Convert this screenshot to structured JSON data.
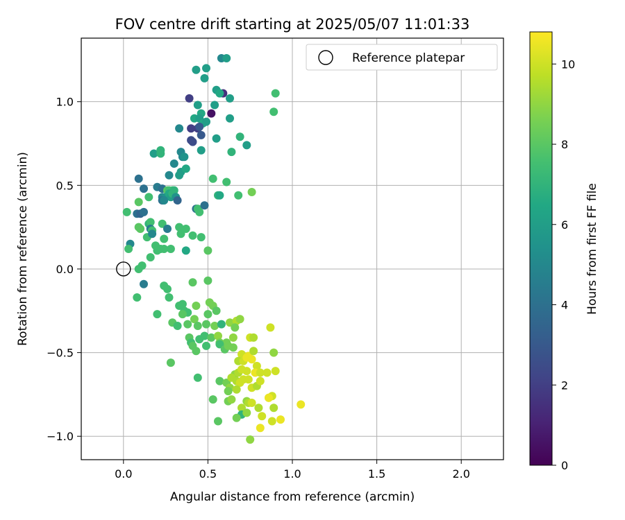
{
  "chart_data": {
    "type": "scatter",
    "title": "FOV centre drift starting at 2025/05/07 11:01:33",
    "xlabel": "Angular distance from reference (arcmin)",
    "ylabel": "Rotation from reference (arcmin)",
    "xlim": [
      -0.25,
      2.25
    ],
    "ylim": [
      -1.14,
      1.38
    ],
    "x_ticks": [
      0.0,
      0.5,
      1.0,
      1.5,
      2.0
    ],
    "x_tick_labels": [
      "0.0",
      "0.5",
      "1.0",
      "1.5",
      "2.0"
    ],
    "y_ticks": [
      -1.0,
      -0.5,
      0.0,
      0.5,
      1.0
    ],
    "y_tick_labels": [
      "−1.0",
      "−0.5",
      "0.0",
      "0.5",
      "1.0"
    ],
    "grid": true,
    "legend": {
      "placement": "top-right",
      "entries": [
        "Reference platepar"
      ]
    },
    "colormap": "viridis",
    "colorbar": {
      "label": "Hours from first FF file",
      "range": [
        0,
        10.8
      ],
      "ticks": [
        0,
        2,
        4,
        6,
        8,
        10
      ],
      "tick_labels": [
        "0",
        "2",
        "4",
        "6",
        "8",
        "10"
      ]
    },
    "reference_point": {
      "x": 0.0,
      "y": 0.0
    },
    "points": [
      [
        0.58,
        1.26,
        5.0
      ],
      [
        0.61,
        1.26,
        6.0
      ],
      [
        0.43,
        1.19,
        6.0
      ],
      [
        0.49,
        1.2,
        6.0
      ],
      [
        0.48,
        1.14,
        6.0
      ],
      [
        0.55,
        1.07,
        6.0
      ],
      [
        0.39,
        1.02,
        2.0
      ],
      [
        0.59,
        1.05,
        1.5
      ],
      [
        0.57,
        1.05,
        6.5
      ],
      [
        0.63,
        1.02,
        6.0
      ],
      [
        0.9,
        1.05,
        7.5
      ],
      [
        0.89,
        0.94,
        7.5
      ],
      [
        0.44,
        0.98,
        6.0
      ],
      [
        0.46,
        0.93,
        6.5
      ],
      [
        0.52,
        0.93,
        0.5
      ],
      [
        0.54,
        0.98,
        6.0
      ],
      [
        0.42,
        0.9,
        6.5
      ],
      [
        0.45,
        0.9,
        6.0
      ],
      [
        0.47,
        0.87,
        6.5
      ],
      [
        0.49,
        0.88,
        6.0
      ],
      [
        0.63,
        0.9,
        6.0
      ],
      [
        0.44,
        0.84,
        2.0
      ],
      [
        0.45,
        0.85,
        3.0
      ],
      [
        0.33,
        0.84,
        5.0
      ],
      [
        0.4,
        0.84,
        2.0
      ],
      [
        0.46,
        0.8,
        3.0
      ],
      [
        0.55,
        0.78,
        6.0
      ],
      [
        0.41,
        0.76,
        2.5
      ],
      [
        0.4,
        0.77,
        2.5
      ],
      [
        0.69,
        0.79,
        7.0
      ],
      [
        0.73,
        0.74,
        6.0
      ],
      [
        0.18,
        0.69,
        6.0
      ],
      [
        0.22,
        0.71,
        7.0
      ],
      [
        0.22,
        0.69,
        7.0
      ],
      [
        0.34,
        0.7,
        5.0
      ],
      [
        0.35,
        0.67,
        5.0
      ],
      [
        0.36,
        0.67,
        5.5
      ],
      [
        0.46,
        0.71,
        6.0
      ],
      [
        0.64,
        0.7,
        7.0
      ],
      [
        0.3,
        0.63,
        5.0
      ],
      [
        0.34,
        0.58,
        6.0
      ],
      [
        0.37,
        0.6,
        6.5
      ],
      [
        0.27,
        0.56,
        5.0
      ],
      [
        0.33,
        0.56,
        6.0
      ],
      [
        0.53,
        0.54,
        7.5
      ],
      [
        0.61,
        0.52,
        7.5
      ],
      [
        0.09,
        0.54,
        4.0
      ],
      [
        0.12,
        0.48,
        4.0
      ],
      [
        0.2,
        0.49,
        4.5
      ],
      [
        0.23,
        0.48,
        4.0
      ],
      [
        0.26,
        0.47,
        8.0
      ],
      [
        0.27,
        0.47,
        7.5
      ],
      [
        0.29,
        0.47,
        7.5
      ],
      [
        0.3,
        0.47,
        7.0
      ],
      [
        0.23,
        0.43,
        5.0
      ],
      [
        0.25,
        0.43,
        5.5
      ],
      [
        0.27,
        0.45,
        6.5
      ],
      [
        0.28,
        0.43,
        6.0
      ],
      [
        0.29,
        0.45,
        7.0
      ],
      [
        0.31,
        0.43,
        5.5
      ],
      [
        0.56,
        0.44,
        7.0
      ],
      [
        0.57,
        0.44,
        6.5
      ],
      [
        0.68,
        0.44,
        7.5
      ],
      [
        0.76,
        0.46,
        8.5
      ],
      [
        0.15,
        0.43,
        7.5
      ],
      [
        0.23,
        0.41,
        4.0
      ],
      [
        0.24,
        0.41,
        5.0
      ],
      [
        0.32,
        0.41,
        3.5
      ],
      [
        0.09,
        0.4,
        8.0
      ],
      [
        0.43,
        0.36,
        4.0
      ],
      [
        0.44,
        0.36,
        7.5
      ],
      [
        0.45,
        0.34,
        7.5
      ],
      [
        0.48,
        0.38,
        4.0
      ],
      [
        0.02,
        0.34,
        7.5
      ],
      [
        0.08,
        0.33,
        4.0
      ],
      [
        0.1,
        0.33,
        3.5
      ],
      [
        0.12,
        0.34,
        4.0
      ],
      [
        0.15,
        0.27,
        7.0
      ],
      [
        0.16,
        0.28,
        7.5
      ],
      [
        0.23,
        0.27,
        7.5
      ],
      [
        0.26,
        0.24,
        4.5
      ],
      [
        0.33,
        0.25,
        7.5
      ],
      [
        0.37,
        0.24,
        7.5
      ],
      [
        0.09,
        0.25,
        8.0
      ],
      [
        0.1,
        0.24,
        8.0
      ],
      [
        0.16,
        0.24,
        4.5
      ],
      [
        0.17,
        0.23,
        7.5
      ],
      [
        0.34,
        0.21,
        7.5
      ],
      [
        0.41,
        0.2,
        7.5
      ],
      [
        0.46,
        0.19,
        7.5
      ],
      [
        0.14,
        0.19,
        7.5
      ],
      [
        0.17,
        0.21,
        5.0
      ],
      [
        0.24,
        0.18,
        7.5
      ],
      [
        0.04,
        0.15,
        5.0
      ],
      [
        0.03,
        0.12,
        7.5
      ],
      [
        0.19,
        0.14,
        7.5
      ],
      [
        0.22,
        0.12,
        7.5
      ],
      [
        0.24,
        0.12,
        7.5
      ],
      [
        0.28,
        0.12,
        7.5
      ],
      [
        0.37,
        0.11,
        6.5
      ],
      [
        0.5,
        0.11,
        8.0
      ],
      [
        0.16,
        0.07,
        7.5
      ],
      [
        0.2,
        0.11,
        7.5
      ],
      [
        0.11,
        0.02,
        7.5
      ],
      [
        0.09,
        0.0,
        7.5
      ],
      [
        0.12,
        -0.09,
        4.5
      ],
      [
        0.08,
        -0.17,
        7.5
      ],
      [
        0.24,
        -0.1,
        7.5
      ],
      [
        0.26,
        -0.12,
        7.5
      ],
      [
        0.41,
        -0.08,
        8.0
      ],
      [
        0.5,
        -0.07,
        8.0
      ],
      [
        0.27,
        -0.17,
        7.5
      ],
      [
        0.33,
        -0.22,
        7.5
      ],
      [
        0.35,
        -0.21,
        7.5
      ],
      [
        0.36,
        -0.25,
        7.5
      ],
      [
        0.43,
        -0.22,
        8.5
      ],
      [
        0.51,
        -0.2,
        8.5
      ],
      [
        0.53,
        -0.22,
        8.5
      ],
      [
        0.2,
        -0.27,
        7.5
      ],
      [
        0.38,
        -0.26,
        7.5
      ],
      [
        0.35,
        -0.27,
        8.0
      ],
      [
        0.42,
        -0.3,
        8.5
      ],
      [
        0.5,
        -0.27,
        8.0
      ],
      [
        0.55,
        -0.25,
        8.0
      ],
      [
        0.29,
        -0.32,
        8.0
      ],
      [
        0.32,
        -0.34,
        7.5
      ],
      [
        0.38,
        -0.33,
        8.0
      ],
      [
        0.44,
        -0.34,
        8.0
      ],
      [
        0.49,
        -0.33,
        8.0
      ],
      [
        0.54,
        -0.34,
        8.5
      ],
      [
        0.58,
        -0.33,
        7.0
      ],
      [
        0.63,
        -0.32,
        9.0
      ],
      [
        0.67,
        -0.31,
        9.5
      ],
      [
        0.69,
        -0.3,
        9.0
      ],
      [
        0.66,
        -0.35,
        8.5
      ],
      [
        0.87,
        -0.35,
        10.0
      ],
      [
        0.39,
        -0.41,
        8.0
      ],
      [
        0.4,
        -0.44,
        7.5
      ],
      [
        0.45,
        -0.42,
        7.5
      ],
      [
        0.48,
        -0.4,
        7.5
      ],
      [
        0.52,
        -0.41,
        8.0
      ],
      [
        0.56,
        -0.4,
        9.0
      ],
      [
        0.57,
        -0.44,
        8.5
      ],
      [
        0.61,
        -0.44,
        8.5
      ],
      [
        0.65,
        -0.41,
        9.0
      ],
      [
        0.75,
        -0.41,
        10.0
      ],
      [
        0.77,
        -0.41,
        9.5
      ],
      [
        0.41,
        -0.46,
        8.0
      ],
      [
        0.43,
        -0.49,
        8.0
      ],
      [
        0.49,
        -0.46,
        7.5
      ],
      [
        0.57,
        -0.45,
        7.5
      ],
      [
        0.6,
        -0.48,
        8.0
      ],
      [
        0.62,
        -0.46,
        8.5
      ],
      [
        0.65,
        -0.47,
        8.5
      ],
      [
        0.7,
        -0.51,
        10.0
      ],
      [
        0.74,
        -0.52,
        10.5
      ],
      [
        0.77,
        -0.49,
        9.5
      ],
      [
        0.89,
        -0.5,
        9.0
      ],
      [
        0.68,
        -0.55,
        9.5
      ],
      [
        0.71,
        -0.55,
        10.0
      ],
      [
        0.73,
        -0.53,
        10.5
      ],
      [
        0.76,
        -0.54,
        10.5
      ],
      [
        0.79,
        -0.58,
        10.0
      ],
      [
        0.28,
        -0.56,
        8.0
      ],
      [
        0.66,
        -0.63,
        9.0
      ],
      [
        0.68,
        -0.62,
        9.5
      ],
      [
        0.7,
        -0.6,
        10.0
      ],
      [
        0.73,
        -0.61,
        10.0
      ],
      [
        0.78,
        -0.62,
        10.5
      ],
      [
        0.81,
        -0.62,
        10.0
      ],
      [
        0.85,
        -0.62,
        10.0
      ],
      [
        0.9,
        -0.61,
        10.0
      ],
      [
        0.44,
        -0.65,
        7.5
      ],
      [
        0.57,
        -0.67,
        8.0
      ],
      [
        0.61,
        -0.68,
        8.5
      ],
      [
        0.64,
        -0.65,
        9.5
      ],
      [
        0.67,
        -0.67,
        9.5
      ],
      [
        0.69,
        -0.68,
        10.0
      ],
      [
        0.71,
        -0.66,
        10.0
      ],
      [
        0.74,
        -0.66,
        10.0
      ],
      [
        0.76,
        -0.71,
        10.0
      ],
      [
        0.79,
        -0.7,
        9.5
      ],
      [
        0.81,
        -0.67,
        10.0
      ],
      [
        0.63,
        -0.71,
        9.0
      ],
      [
        0.67,
        -0.72,
        9.5
      ],
      [
        0.62,
        -0.73,
        8.5
      ],
      [
        0.86,
        -0.77,
        10.0
      ],
      [
        0.88,
        -0.76,
        10.0
      ],
      [
        0.86,
        -0.77,
        10.5
      ],
      [
        0.53,
        -0.78,
        8.0
      ],
      [
        0.62,
        -0.79,
        8.5
      ],
      [
        0.64,
        -0.78,
        9.0
      ],
      [
        0.73,
        -0.79,
        9.0
      ],
      [
        0.74,
        -0.8,
        9.5
      ],
      [
        0.76,
        -0.8,
        10.0
      ],
      [
        0.7,
        -0.83,
        9.5
      ],
      [
        0.8,
        -0.83,
        9.5
      ],
      [
        0.89,
        -0.83,
        9.5
      ],
      [
        1.05,
        -0.81,
        10.5
      ],
      [
        0.7,
        -0.87,
        7.0
      ],
      [
        0.67,
        -0.89,
        8.5
      ],
      [
        0.73,
        -0.86,
        9.0
      ],
      [
        0.82,
        -0.88,
        10.0
      ],
      [
        0.56,
        -0.91,
        8.0
      ],
      [
        0.88,
        -0.91,
        10.0
      ],
      [
        0.93,
        -0.9,
        10.5
      ],
      [
        0.81,
        -0.95,
        10.5
      ],
      [
        0.75,
        -1.02,
        9.0
      ]
    ]
  }
}
